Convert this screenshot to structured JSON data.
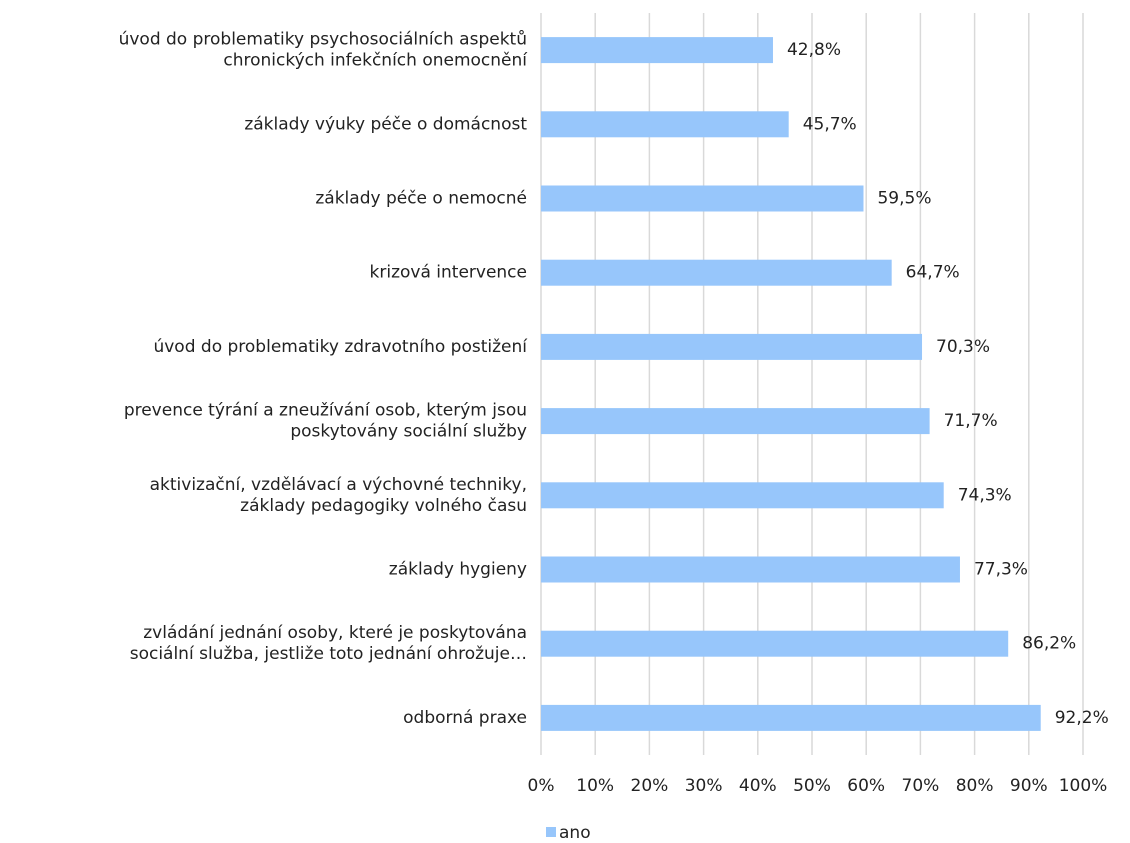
{
  "chart_data": {
    "type": "hbar",
    "categories": [
      [
        "úvod do problematiky psychosociálních aspektů",
        "chronických infekčních onemocnění"
      ],
      [
        "základy výuky péče o domácnost"
      ],
      [
        "základy péče o nemocné"
      ],
      [
        "krizová intervence"
      ],
      [
        "úvod do problematiky zdravotního postižení"
      ],
      [
        "prevence týrání a zneužívání osob, kterým jsou",
        "poskytovány sociální služby"
      ],
      [
        "aktivizační, vzdělávací a výchovné techniky,",
        "základy pedagogiky volného času"
      ],
      [
        "základy hygieny"
      ],
      [
        "zvládání jednání osoby, které je poskytována",
        "sociální služba, jestliže toto jednání ohrožuje…"
      ],
      [
        "odborná praxe"
      ]
    ],
    "series": [
      {
        "name": "ano",
        "color": "#97c6fb",
        "values": [
          42.8,
          45.7,
          59.5,
          64.7,
          70.3,
          71.7,
          74.3,
          77.3,
          86.2,
          92.2
        ],
        "value_labels": [
          "42,8%",
          "45,7%",
          "59,5%",
          "64,7%",
          "70,3%",
          "71,7%",
          "74,3%",
          "77,3%",
          "86,2%",
          "92,2%"
        ]
      }
    ],
    "xlim": [
      0,
      100
    ],
    "xticks": [
      {
        "value": 0,
        "label": "0%"
      },
      {
        "value": 10,
        "label": "10%"
      },
      {
        "value": 20,
        "label": "20%"
      },
      {
        "value": 30,
        "label": "30%"
      },
      {
        "value": 40,
        "label": "40%"
      },
      {
        "value": 50,
        "label": "50%"
      },
      {
        "value": 60,
        "label": "60%"
      },
      {
        "value": 70,
        "label": "70%"
      },
      {
        "value": 80,
        "label": "80%"
      },
      {
        "value": 90,
        "label": "90%"
      },
      {
        "value": 100,
        "label": "100%"
      }
    ],
    "grid": true,
    "legend": "bottom"
  }
}
